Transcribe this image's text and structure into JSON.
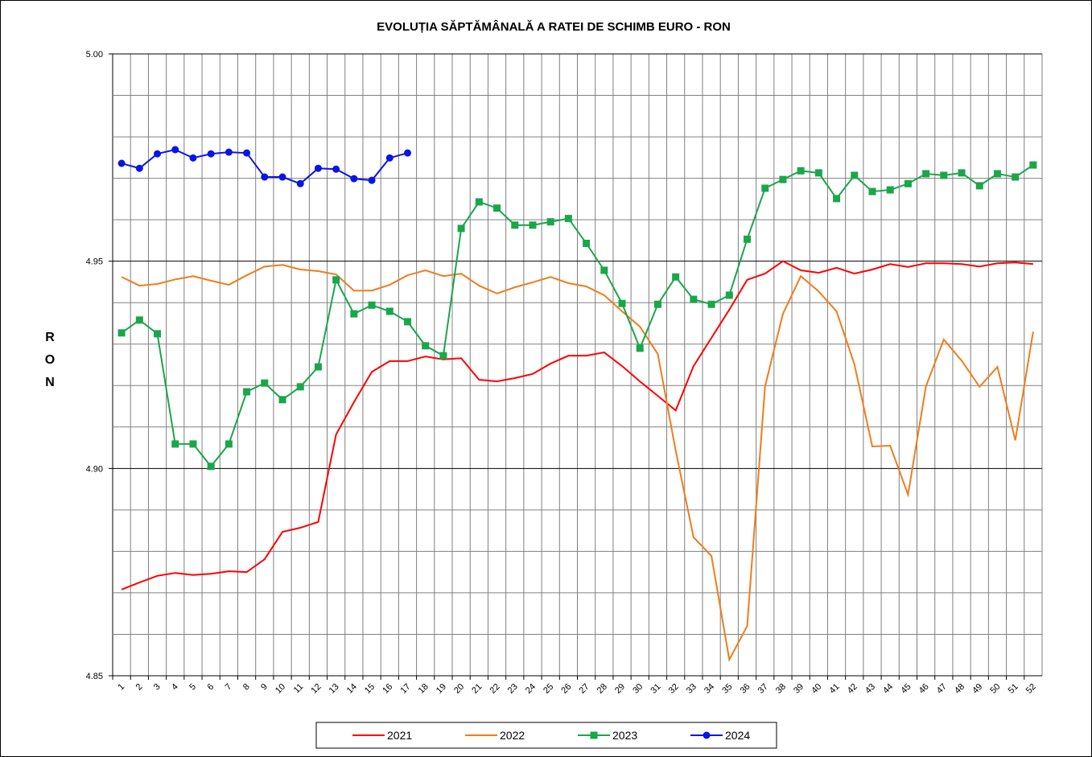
{
  "chart_data": {
    "type": "line",
    "title": "EVOLUȚIA SĂPTĂMÂNALĂ  A RATEI DE SCHIMB EURO - RON",
    "y_label": "R O N",
    "categories": [
      "1",
      "2",
      "3",
      "4",
      "5",
      "6",
      "7",
      "8",
      "9",
      "10",
      "11",
      "12",
      "13",
      "14",
      "15",
      "16",
      "17",
      "18",
      "19",
      "20",
      "21",
      "22",
      "23",
      "24",
      "25",
      "26",
      "27",
      "28",
      "29",
      "30",
      "31",
      "32",
      "33",
      "34",
      "35",
      "36",
      "37",
      "38",
      "39",
      "40",
      "41",
      "42",
      "43",
      "44",
      "45",
      "46",
      "47",
      "48",
      "49",
      "50",
      "51",
      "52"
    ],
    "ylim": [
      4.85,
      5.0
    ],
    "yticks": [
      {
        "value": 4.85,
        "label": "4.85"
      },
      {
        "value": 4.9,
        "label": "4.90"
      },
      {
        "value": 4.95,
        "label": "4.95"
      },
      {
        "value": 5.0,
        "label": "5.00"
      }
    ],
    "minor_yticks": [
      4.86,
      4.87,
      4.88,
      4.89,
      4.91,
      4.92,
      4.93,
      4.94,
      4.96,
      4.97,
      4.98,
      4.99
    ],
    "grid": true,
    "series": [
      {
        "name": "2021",
        "color": "#ff0000",
        "marker": "none",
        "values": [
          4.8708,
          4.8725,
          4.8741,
          4.8748,
          4.8743,
          4.8746,
          4.8752,
          4.875,
          4.8781,
          4.8847,
          4.8857,
          4.8871,
          4.9082,
          4.916,
          4.9233,
          4.9259,
          4.9259,
          4.927,
          4.9263,
          4.9266,
          4.9214,
          4.921,
          4.9218,
          4.9228,
          4.9253,
          4.9272,
          4.9272,
          4.928,
          4.9247,
          4.921,
          4.9175,
          4.914,
          4.9247,
          4.9315,
          4.9383,
          4.9455,
          4.947,
          4.95,
          4.9478,
          4.9472,
          4.9484,
          4.947,
          4.948,
          4.9493,
          4.9486,
          4.9495,
          4.9495,
          4.9493,
          4.9487,
          4.9495,
          4.9497,
          4.9493
        ]
      },
      {
        "name": "2022",
        "color": "#f07c1c",
        "marker": "none",
        "values": [
          4.9462,
          4.9441,
          4.9445,
          4.9456,
          4.9464,
          4.9453,
          4.9443,
          4.9466,
          4.9487,
          4.9491,
          4.948,
          4.9476,
          4.9468,
          4.9429,
          4.9429,
          4.9443,
          4.9466,
          4.9478,
          4.9464,
          4.947,
          4.9441,
          4.9422,
          4.9437,
          4.9449,
          4.9462,
          4.9447,
          4.9439,
          4.9418,
          4.9379,
          4.9342,
          4.9276,
          4.9043,
          4.8834,
          4.8789,
          4.8539,
          4.862,
          4.9198,
          4.9373,
          4.9464,
          4.9427,
          4.9379,
          4.9251,
          4.9053,
          4.9055,
          4.8937,
          4.9198,
          4.9311,
          4.926,
          4.9197,
          4.9245,
          4.9068,
          4.933
        ]
      },
      {
        "name": "2023",
        "color": "#1aa64a",
        "marker": "square",
        "values": [
          4.9327,
          4.9358,
          4.9325,
          4.9059,
          4.9059,
          4.9005,
          4.9059,
          4.9185,
          4.9206,
          4.9166,
          4.9197,
          4.9245,
          4.9455,
          4.9373,
          4.9394,
          4.9379,
          4.9354,
          4.9296,
          4.9272,
          4.9579,
          4.9643,
          4.9628,
          4.9587,
          4.9587,
          4.9595,
          4.9603,
          4.9543,
          4.9478,
          4.9398,
          4.929,
          4.9396,
          4.9462,
          4.9408,
          4.9396,
          4.9418,
          4.9553,
          4.9676,
          4.9697,
          4.9718,
          4.9713,
          4.9651,
          4.9707,
          4.9668,
          4.9672,
          4.9687,
          4.9711,
          4.9707,
          4.9713,
          4.9682,
          4.9711,
          4.9703,
          4.9732
        ]
      },
      {
        "name": "2024",
        "color": "#0a14e6",
        "marker": "circle",
        "values": [
          4.9736,
          4.9724,
          4.9759,
          4.9769,
          4.9749,
          4.9759,
          4.9763,
          4.9761,
          4.9703,
          4.9703,
          4.9687,
          4.9724,
          4.9722,
          4.9699,
          4.9695,
          4.9749,
          4.9761,
          null,
          null,
          null,
          null,
          null,
          null,
          null,
          null,
          null,
          null,
          null,
          null,
          null,
          null,
          null,
          null,
          null,
          null,
          null,
          null,
          null,
          null,
          null,
          null,
          null,
          null,
          null,
          null,
          null,
          null,
          null,
          null,
          null,
          null,
          null
        ]
      }
    ]
  }
}
